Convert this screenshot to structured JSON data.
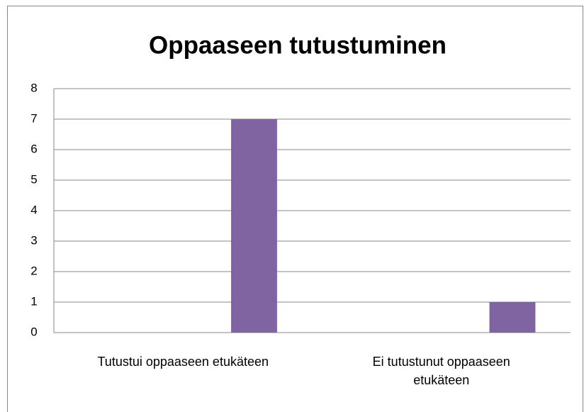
{
  "chart_data": {
    "type": "bar",
    "title": "Oppaaseen tutustuminen",
    "categories": [
      "Tutustui oppaaseen etukäteen",
      "Ei tutustunut oppaaseen etukäteen"
    ],
    "values": [
      7,
      1
    ],
    "color": "#8064a2",
    "ylim": [
      0,
      8
    ],
    "yticks": [
      0,
      1,
      2,
      3,
      4,
      5,
      6,
      7,
      8
    ],
    "grid": true
  }
}
